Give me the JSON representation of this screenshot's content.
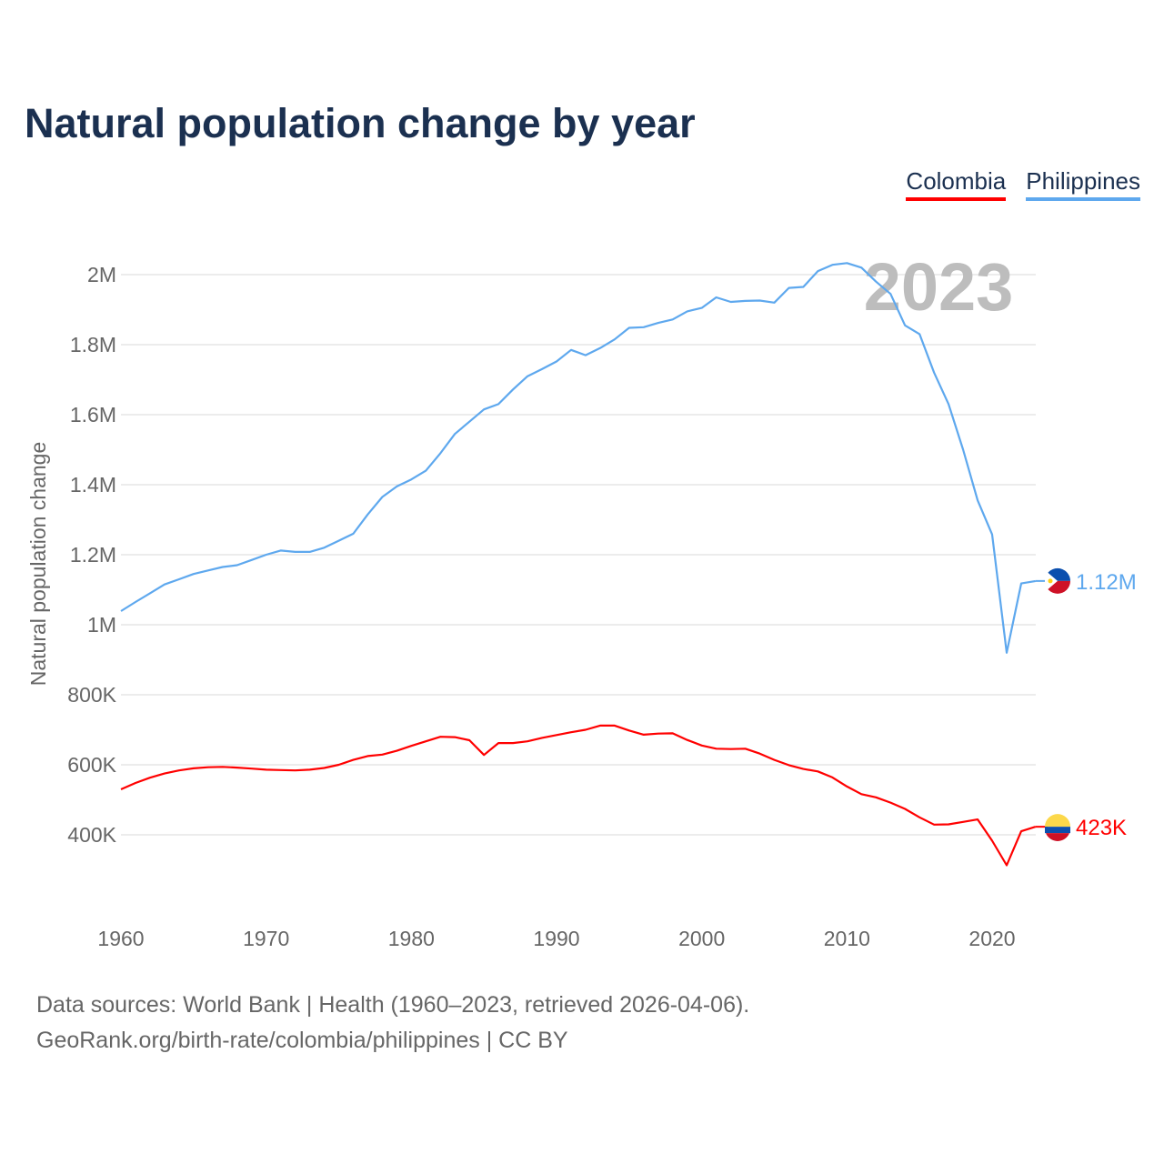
{
  "title": "Natural population change by year",
  "legend": [
    {
      "label": "Colombia",
      "color": "#ff0000"
    },
    {
      "label": "Philippines",
      "color": "#5ea8ee"
    }
  ],
  "footer": {
    "line1": "Data sources: World Bank | Health (1960–2023, retrieved 2026-04-06).",
    "line2": "GeoRank.org/birth-rate/colombia/philippines | CC BY"
  },
  "chart_data": {
    "type": "line",
    "title": "Natural population change by year",
    "ylabel": "Natural population change",
    "xlabel": "",
    "xlim": [
      1960,
      2023
    ],
    "ylim": [
      200000,
      2100000
    ],
    "x_ticks": [
      1960,
      1970,
      1980,
      1990,
      2000,
      2010,
      2020
    ],
    "x_tick_labels": [
      "1960",
      "1970",
      "1980",
      "1990",
      "2000",
      "2010",
      "2020"
    ],
    "y_ticks": [
      400000,
      600000,
      800000,
      1000000,
      1200000,
      1400000,
      1600000,
      1800000,
      2000000
    ],
    "y_tick_labels": [
      "400K",
      "600K",
      "800K",
      "1M",
      "1.2M",
      "1.4M",
      "1.6M",
      "1.8M",
      "2M"
    ],
    "grid": true,
    "current_year_label": "2023",
    "x_start": 1960,
    "series": [
      {
        "name": "Colombia",
        "color": "#ff0000",
        "end_label": "423K",
        "values": [
          530000,
          548000,
          563000,
          575000,
          584000,
          590000,
          593000,
          594000,
          592000,
          589000,
          586000,
          585000,
          584000,
          586000,
          591000,
          600000,
          614000,
          625000,
          629000,
          640000,
          654000,
          667000,
          680000,
          679000,
          670000,
          628000,
          662000,
          662000,
          667000,
          677000,
          685000,
          693000,
          700000,
          712000,
          712000,
          698000,
          686000,
          689000,
          690000,
          671000,
          655000,
          646000,
          645000,
          646000,
          632000,
          614000,
          599000,
          588000,
          581000,
          564000,
          538000,
          516000,
          507000,
          492000,
          474000,
          450000,
          429000,
          430000,
          437000,
          444000,
          383000,
          313000,
          410000,
          423000
        ]
      },
      {
        "name": "Philippines",
        "color": "#5ea8ee",
        "end_label": "1.12M",
        "values": [
          1039000,
          1065000,
          1090000,
          1115000,
          1130000,
          1145000,
          1155000,
          1165000,
          1170000,
          1185000,
          1200000,
          1212000,
          1208000,
          1208000,
          1220000,
          1240000,
          1260000,
          1315000,
          1365000,
          1395000,
          1415000,
          1440000,
          1490000,
          1545000,
          1580000,
          1615000,
          1630000,
          1672000,
          1710000,
          1730000,
          1752000,
          1785000,
          1770000,
          1790000,
          1815000,
          1848000,
          1850000,
          1862000,
          1872000,
          1895000,
          1905000,
          1935000,
          1922000,
          1925000,
          1926000,
          1920000,
          1962000,
          1965000,
          2010000,
          2028000,
          2033000,
          2020000,
          1980000,
          1945000,
          1855000,
          1830000,
          1720000,
          1630000,
          1500000,
          1355000,
          1258000,
          920000,
          1118000,
          1125000
        ]
      }
    ]
  }
}
